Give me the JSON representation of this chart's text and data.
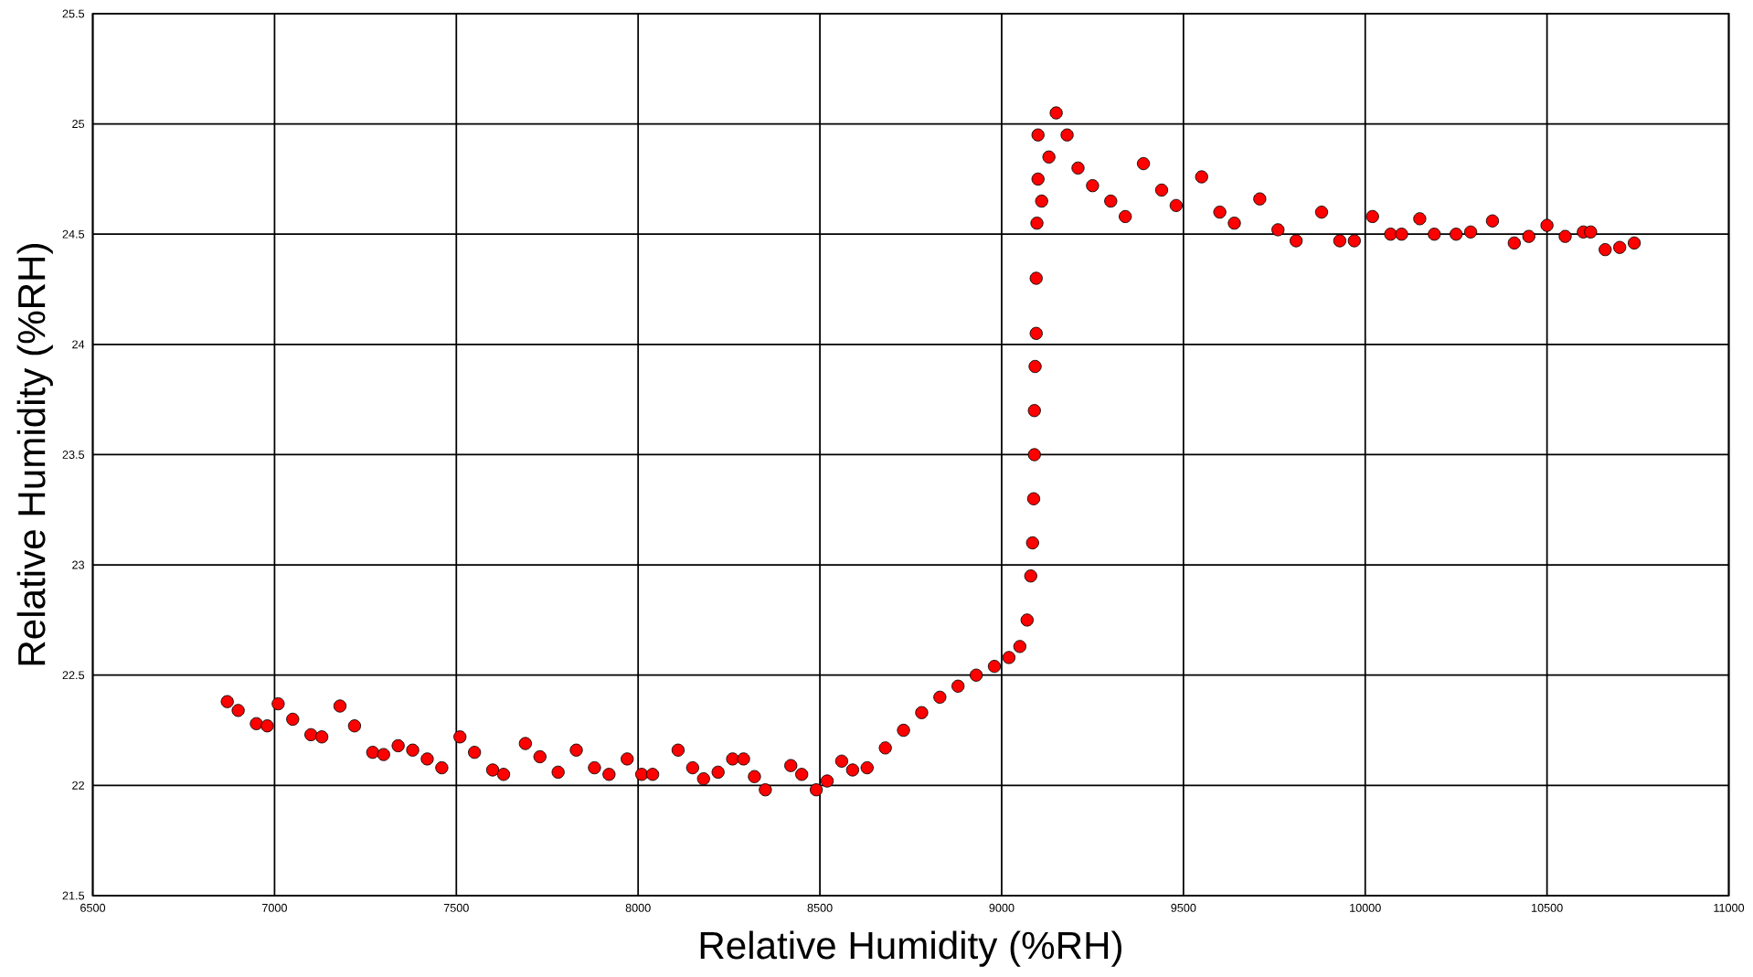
{
  "chart_data": {
    "type": "scatter",
    "xlabel": "Relative Humidity (%RH)",
    "ylabel": "Relative Humidity (%RH)",
    "xlim": [
      6500,
      11000
    ],
    "xticks": [
      6500,
      7000,
      7500,
      8000,
      8500,
      9000,
      9500,
      10000,
      10500,
      11000
    ],
    "ylim": [
      21.5,
      25.5
    ],
    "yticks": [
      21.5,
      22,
      22.5,
      23,
      23.5,
      24,
      24.5,
      25,
      25.5
    ],
    "grid": true,
    "marker": "circle",
    "series": [
      {
        "color": "#ff0000",
        "x": [
          6870,
          6900,
          6950,
          6980,
          7010,
          7050,
          7100,
          7130,
          7180,
          7220,
          7270,
          7300,
          7340,
          7380,
          7420,
          7460,
          7510,
          7550,
          7600,
          7630,
          7690,
          7730,
          7780,
          7830,
          7880,
          7920,
          7970,
          8010,
          8040,
          8110,
          8150,
          8180,
          8220,
          8260,
          8290,
          8320,
          8350,
          8420,
          8450,
          8490,
          8520,
          8560,
          8590,
          8630,
          8680,
          8730,
          8780,
          8830,
          8880,
          8930,
          8980,
          9020,
          9050,
          9070,
          9080,
          9085,
          9088,
          9090,
          9090,
          9092,
          9095,
          9095,
          9097,
          9100,
          9100,
          9110,
          9130,
          9150,
          9180,
          9210,
          9250,
          9300,
          9340,
          9390,
          9440,
          9480,
          9550,
          9600,
          9640,
          9710,
          9760,
          9810,
          9880,
          9930,
          9970,
          10020,
          10070,
          10100,
          10150,
          10190,
          10250,
          10290,
          10350,
          10410,
          10450,
          10500,
          10550,
          10600,
          10620,
          10660,
          10700,
          10740
        ],
        "values": [
          22.38,
          22.34,
          22.28,
          22.27,
          22.37,
          22.3,
          22.23,
          22.22,
          22.36,
          22.27,
          22.15,
          22.14,
          22.18,
          22.16,
          22.12,
          22.08,
          22.22,
          22.15,
          22.07,
          22.05,
          22.19,
          22.13,
          22.06,
          22.16,
          22.08,
          22.05,
          22.12,
          22.05,
          22.05,
          22.16,
          22.08,
          22.03,
          22.06,
          22.12,
          22.12,
          22.04,
          21.98,
          22.09,
          22.05,
          21.98,
          22.02,
          22.11,
          22.07,
          22.08,
          22.17,
          22.25,
          22.33,
          22.4,
          22.45,
          22.5,
          22.54,
          22.58,
          22.63,
          22.75,
          22.95,
          23.1,
          23.3,
          23.5,
          23.7,
          23.9,
          24.05,
          24.3,
          24.55,
          24.75,
          24.95,
          24.65,
          24.85,
          25.05,
          24.95,
          24.8,
          24.72,
          24.65,
          24.58,
          24.82,
          24.7,
          24.63,
          24.76,
          24.6,
          24.55,
          24.66,
          24.52,
          24.47,
          24.6,
          24.47,
          24.47,
          24.58,
          24.5,
          24.5,
          24.57,
          24.5,
          24.5,
          24.51,
          24.56,
          24.46,
          24.49,
          24.54,
          24.49,
          24.51,
          24.51,
          24.43,
          24.44,
          24.46
        ]
      }
    ]
  }
}
